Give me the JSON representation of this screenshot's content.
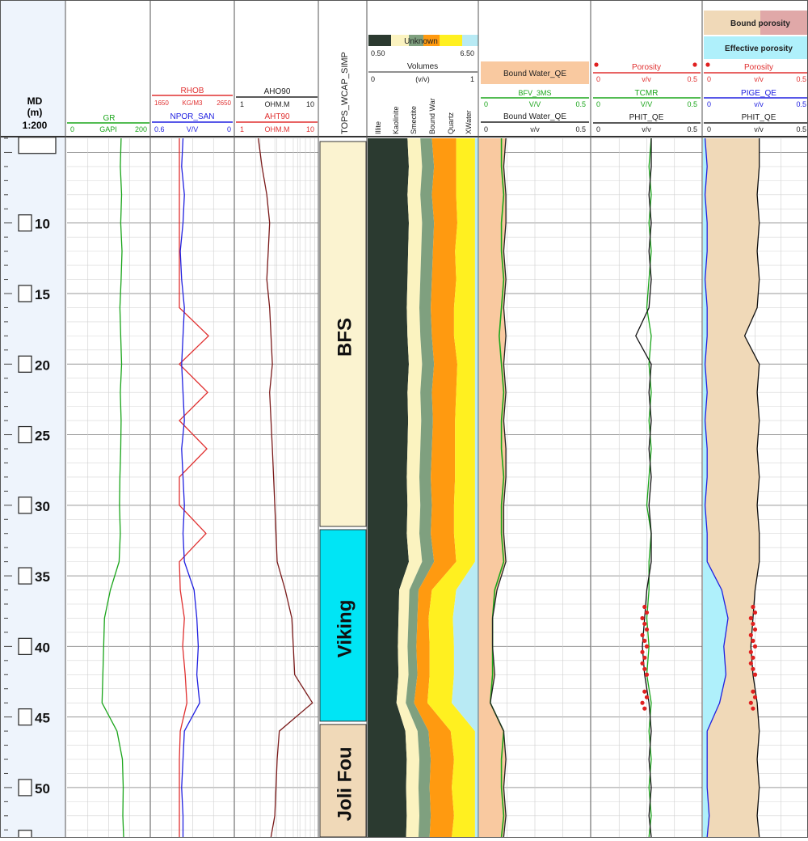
{
  "depth_track": {
    "title_line1": "MD",
    "title_line2": "(m)",
    "scale": "1:200",
    "labels": [
      "10",
      "15",
      "20",
      "25",
      "30",
      "35",
      "40",
      "45",
      "50"
    ]
  },
  "headers": {
    "gr": {
      "name": "GR",
      "min": "0",
      "unit": "GAPI",
      "max": "200",
      "color": "#1aa51a"
    },
    "rhob": {
      "name": "RHOB",
      "min": "1650",
      "unit": "KG/M3",
      "max": "2650",
      "color": "#e03030"
    },
    "npor": {
      "name": "NPOR_SAN",
      "min": "0.6",
      "unit": "V/V",
      "max": "0",
      "color": "#2020e0"
    },
    "aho90": {
      "name": "AHO90",
      "min": "1",
      "unit": "OHM.M",
      "max": "10",
      "color": "#222222"
    },
    "aht90": {
      "name": "AHT90",
      "min": "1",
      "unit": "OHM.M",
      "max": "10",
      "color": "#e03030"
    },
    "tops": {
      "name": "TOPS_WCAP_SIMP"
    },
    "volumes": {
      "unknown": "Unknown",
      "left_val": "0.50",
      "right_val": "6.50",
      "title": "Volumes",
      "scale_min": "0",
      "unit": "(v/v)",
      "scale_max": "1",
      "minerals": [
        "Illite",
        "Kaolinite",
        "Smectite",
        "Bound War",
        "Quartz",
        "XWater"
      ]
    },
    "bw": {
      "fill_label": "Bound Water_QE",
      "curve": "BFV_3MS",
      "unit": "V/V",
      "min": "0",
      "max": "0.5",
      "curve2": "Bound Water_QE",
      "unit2": "v/v",
      "min2": "0",
      "max2": "0.5"
    },
    "por": {
      "name": "Porosity",
      "unit": "v/v",
      "min": "0",
      "max": "0.5",
      "curve": "TCMR",
      "unit2": "V/V",
      "min2": "0",
      "max2": "0.5",
      "curve3": "PHIT_QE",
      "unit3": "v/v",
      "min3": "0",
      "max3": "0.5"
    },
    "eff": {
      "bound": "Bound porosity",
      "effective": "Effective porosity",
      "name": "Porosity",
      "unit": "v/v",
      "min": "0",
      "max": "0.5",
      "curve": "PIGE_QE",
      "unit2": "v/v",
      "min2": "0",
      "max2": "0.5",
      "curve3": "PHIT_QE",
      "unit3": "v/v",
      "min3": "0",
      "max3": "0.5"
    }
  },
  "chart_data": {
    "type": "line",
    "depth_range": [
      4,
      53.5
    ],
    "depth_unit": "m",
    "formations": [
      {
        "name": "BFS",
        "top": 4,
        "base": 31.5,
        "color": "#fbf3d0"
      },
      {
        "name": "Viking",
        "top": 31.5,
        "base": 45.3,
        "color": "#00e5f5"
      },
      {
        "name": "Joli Fou",
        "top": 45.3,
        "base": 53.5,
        "color": "#f0d9b8"
      }
    ],
    "depth": [
      4,
      6,
      8,
      10,
      12,
      14,
      16,
      18,
      20,
      22,
      24,
      26,
      28,
      30,
      32,
      34,
      36,
      38,
      40,
      42,
      44,
      46,
      48,
      50,
      52,
      53.5
    ],
    "gr": [
      130,
      128,
      131,
      129,
      132,
      130,
      127,
      129,
      131,
      128,
      130,
      129,
      127,
      126,
      128,
      125,
      104,
      90,
      88,
      86,
      84,
      120,
      133,
      135,
      134,
      136
    ],
    "rhob": [
      1990,
      1990,
      1990,
      1990,
      1990,
      1990,
      1990,
      2340,
      1990,
      2330,
      1990,
      2320,
      1990,
      1990,
      2310,
      1990,
      2000,
      2050,
      2030,
      2060,
      2080,
      2000,
      1990,
      1990,
      1990,
      1990
    ],
    "npor": [
      0.37,
      0.38,
      0.36,
      0.37,
      0.39,
      0.38,
      0.36,
      0.37,
      0.38,
      0.37,
      0.36,
      0.38,
      0.37,
      0.36,
      0.37,
      0.36,
      0.29,
      0.27,
      0.26,
      0.27,
      0.25,
      0.36,
      0.37,
      0.38,
      0.37,
      0.37
    ],
    "aho90": [
      1.9,
      2.1,
      2.4,
      2.6,
      2.5,
      2.4,
      2.6,
      2.7,
      2.8,
      2.6,
      2.7,
      2.8,
      2.9,
      3.0,
      3.1,
      3.2,
      4.0,
      4.8,
      5.0,
      5.2,
      8.5,
      3.4,
      3.2,
      3.1,
      3.0,
      2.7
    ],
    "shale_volume": [
      0.58,
      0.6,
      0.58,
      0.6,
      0.59,
      0.58,
      0.57,
      0.58,
      0.6,
      0.58,
      0.59,
      0.58,
      0.57,
      0.58,
      0.57,
      0.6,
      0.46,
      0.45,
      0.44,
      0.45,
      0.42,
      0.55,
      0.57,
      0.56,
      0.57,
      0.56
    ],
    "bound_water_volume": [
      0.22,
      0.2,
      0.22,
      0.21,
      0.2,
      0.22,
      0.21,
      0.2,
      0.21,
      0.22,
      0.2,
      0.21,
      0.22,
      0.2,
      0.21,
      0.2,
      0.12,
      0.1,
      0.12,
      0.11,
      0.12,
      0.2,
      0.21,
      0.2,
      0.21,
      0.2
    ],
    "bfv_3ms": [
      0.1,
      0.1,
      0.11,
      0.1,
      0.1,
      0.11,
      0.1,
      0.09,
      0.1,
      0.11,
      0.1,
      0.1,
      0.11,
      0.1,
      0.1,
      0.11,
      0.07,
      0.06,
      0.06,
      0.06,
      0.05,
      0.11,
      0.1,
      0.1,
      0.11,
      0.1
    ],
    "bound_water_qe": [
      0.12,
      0.11,
      0.12,
      0.12,
      0.11,
      0.12,
      0.11,
      0.12,
      0.11,
      0.12,
      0.11,
      0.12,
      0.12,
      0.11,
      0.11,
      0.12,
      0.08,
      0.06,
      0.06,
      0.07,
      0.05,
      0.11,
      0.12,
      0.11,
      0.12,
      0.11
    ],
    "tcmr": [
      0.27,
      0.26,
      0.27,
      0.26,
      0.27,
      0.26,
      0.25,
      0.27,
      0.26,
      0.27,
      0.26,
      0.27,
      0.26,
      0.25,
      0.27,
      0.26,
      0.26,
      0.25,
      0.26,
      0.25,
      0.27,
      0.26,
      0.27,
      0.26,
      0.27,
      0.26
    ],
    "phit_qe": [
      0.27,
      0.27,
      0.26,
      0.27,
      0.26,
      0.27,
      0.26,
      0.2,
      0.27,
      0.26,
      0.27,
      0.26,
      0.27,
      0.26,
      0.27,
      0.27,
      0.25,
      0.24,
      0.23,
      0.24,
      0.26,
      0.27,
      0.26,
      0.27,
      0.26,
      0.27
    ],
    "pige_qe": [
      0.01,
      0.02,
      0.01,
      0.02,
      0.02,
      0.01,
      0.02,
      0.02,
      0.01,
      0.02,
      0.01,
      0.02,
      0.02,
      0.01,
      0.02,
      0.02,
      0.09,
      0.12,
      0.1,
      0.11,
      0.08,
      0.02,
      0.02,
      0.02,
      0.03,
      0.02
    ],
    "core_depth": [
      37.2,
      37.6,
      38.0,
      38.4,
      38.8,
      39.2,
      39.6,
      40.0,
      40.4,
      40.8,
      41.2,
      41.6,
      42.0,
      43.2,
      43.6,
      44.0,
      44.4
    ],
    "core_porosity": [
      0.24,
      0.25,
      0.23,
      0.24,
      0.25,
      0.23,
      0.24,
      0.25,
      0.23,
      0.24,
      0.23,
      0.24,
      0.25,
      0.24,
      0.25,
      0.23,
      0.24
    ]
  }
}
